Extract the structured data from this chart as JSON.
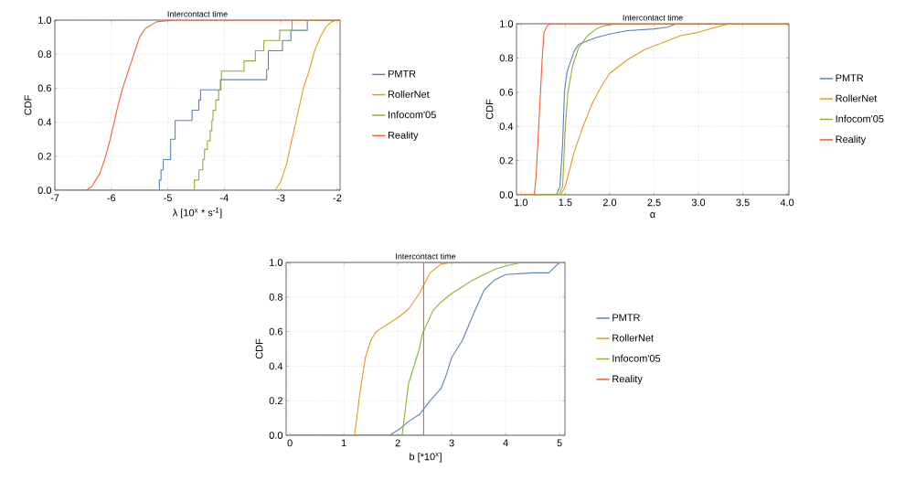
{
  "chart_data": [
    {
      "type": "step",
      "title": "Intercontact time",
      "xlabel": "λ [10$^{x}$ * s$^{-1}$]",
      "ylabel": "CDF",
      "xlim": [
        -7,
        -1.95
      ],
      "ylim": [
        0,
        1
      ],
      "xticks": [
        -7,
        -6,
        -5,
        -4,
        -3,
        -2
      ],
      "yticks": [
        {
          "value": 0,
          "label": "0.0"
        },
        {
          "value": 0.2,
          "label": "0.2"
        },
        {
          "value": 0.4,
          "label": "0.4"
        },
        {
          "value": 0.6,
          "label": "0.6"
        },
        {
          "value": 0.8,
          "label": "0.8"
        },
        {
          "value": 1,
          "label": "1.0"
        }
      ],
      "grid": true,
      "legend": "right",
      "series": [
        {
          "name": "PMTR",
          "color": "#5e81b5",
          "x": [
            -7,
            -5.15,
            -5.12,
            -5.08,
            -4.95,
            -4.87,
            -4.57,
            -4.45,
            -4.42,
            -4.06,
            -3.25,
            -3.22,
            -2.97,
            -2.82,
            -2.53,
            -1.95
          ],
          "values": [
            0,
            0.06,
            0.12,
            0.18,
            0.3,
            0.41,
            0.47,
            0.53,
            0.59,
            0.65,
            0.71,
            0.82,
            0.88,
            0.94,
            1,
            1
          ]
        },
        {
          "name": "RollerNet",
          "type": "line",
          "color": "#e19c24",
          "x": [
            -7,
            -3.1,
            -3.0,
            -2.9,
            -2.8,
            -2.7,
            -2.6,
            -2.5,
            -2.4,
            -2.3,
            -2.2,
            -2.1,
            -2.0,
            -1.95
          ],
          "values": [
            0,
            0,
            0.05,
            0.15,
            0.3,
            0.45,
            0.6,
            0.7,
            0.82,
            0.9,
            0.96,
            0.99,
            1,
            1
          ]
        },
        {
          "name": "Infocom'05",
          "color": "#8fb032",
          "x": [
            -7,
            -4.53,
            -4.45,
            -4.38,
            -4.35,
            -4.3,
            -4.25,
            -4.22,
            -4.2,
            -4.15,
            -4.1,
            -4.07,
            -4.05,
            -3.65,
            -3.45,
            -3.3,
            -3.02,
            -2.8,
            -1.95
          ],
          "values": [
            0,
            0.06,
            0.12,
            0.18,
            0.24,
            0.29,
            0.35,
            0.41,
            0.47,
            0.53,
            0.59,
            0.65,
            0.7,
            0.76,
            0.82,
            0.88,
            0.94,
            1,
            1
          ]
        },
        {
          "name": "Reality",
          "type": "line",
          "color": "#eb6235",
          "x": [
            -7,
            -6.45,
            -6.35,
            -6.2,
            -6.1,
            -6.02,
            -5.95,
            -5.88,
            -5.8,
            -5.7,
            -5.6,
            -5.5,
            -5.4,
            -5.2,
            -4.9,
            -1.95
          ],
          "values": [
            0,
            0,
            0.02,
            0.1,
            0.2,
            0.3,
            0.4,
            0.5,
            0.6,
            0.7,
            0.8,
            0.9,
            0.95,
            0.99,
            1,
            1
          ]
        }
      ]
    },
    {
      "type": "line",
      "title": "Intercontact time",
      "xlabel": "α",
      "ylabel": "CDF",
      "xlim": [
        0.95,
        4.02
      ],
      "ylim": [
        0,
        1
      ],
      "xticks": [
        {
          "value": 1,
          "label": "1.0"
        },
        {
          "value": 1.5,
          "label": "1.5"
        },
        {
          "value": 2,
          "label": "2.0"
        },
        {
          "value": 2.5,
          "label": "2.5"
        },
        {
          "value": 3,
          "label": "3.0"
        },
        {
          "value": 3.5,
          "label": "3.5"
        },
        {
          "value": 4,
          "label": "4.0"
        }
      ],
      "yticks": [
        {
          "value": 0,
          "label": "0.0"
        },
        {
          "value": 0.2,
          "label": "0.2"
        },
        {
          "value": 0.4,
          "label": "0.4"
        },
        {
          "value": 0.6,
          "label": "0.6"
        },
        {
          "value": 0.8,
          "label": "0.8"
        },
        {
          "value": 1,
          "label": "1.0"
        }
      ],
      "grid": true,
      "legend": "right",
      "series": [
        {
          "name": "PMTR",
          "color": "#5e81b5",
          "x": [
            1.0,
            1.4,
            1.44,
            1.47,
            1.49,
            1.52,
            1.56,
            1.6,
            1.65,
            1.75,
            1.85,
            2.0,
            2.2,
            2.5,
            2.65,
            2.75,
            4.0
          ],
          "values": [
            0,
            0,
            0.05,
            0.3,
            0.6,
            0.72,
            0.78,
            0.84,
            0.88,
            0.9,
            0.92,
            0.94,
            0.96,
            0.97,
            0.98,
            1,
            1
          ]
        },
        {
          "name": "RollerNet",
          "color": "#e19c24",
          "x": [
            1.0,
            1.45,
            1.5,
            1.6,
            1.7,
            1.8,
            1.9,
            2.0,
            2.2,
            2.4,
            2.6,
            2.8,
            3.0,
            3.2,
            3.35,
            4.0
          ],
          "values": [
            0,
            0,
            0.05,
            0.25,
            0.4,
            0.53,
            0.63,
            0.71,
            0.79,
            0.85,
            0.89,
            0.93,
            0.95,
            0.98,
            1,
            1
          ]
        },
        {
          "name": "Infocom'05",
          "color": "#8fb032",
          "x": [
            1.0,
            1.43,
            1.47,
            1.5,
            1.53,
            1.58,
            1.65,
            1.75,
            1.85,
            1.95,
            2.1,
            4.0
          ],
          "values": [
            0,
            0,
            0.05,
            0.4,
            0.6,
            0.75,
            0.86,
            0.93,
            0.97,
            0.99,
            1,
            1
          ]
        },
        {
          "name": "Reality",
          "color": "#eb6235",
          "x": [
            1.0,
            1.15,
            1.17,
            1.2,
            1.24,
            1.26,
            1.3,
            1.33,
            4.0
          ],
          "values": [
            0,
            0,
            0.1,
            0.4,
            0.8,
            0.95,
            0.99,
            1,
            1
          ]
        }
      ]
    },
    {
      "type": "line",
      "title": "Intercontact time",
      "xlabel": "b [*10$^{x}$]",
      "ylabel": "CDF",
      "xlim": [
        -0.07,
        5.1
      ],
      "ylim": [
        0,
        1
      ],
      "xticks": [
        0,
        1,
        2,
        3,
        4,
        5
      ],
      "yticks": [
        {
          "value": 0,
          "label": "0.0"
        },
        {
          "value": 0.2,
          "label": "0.2"
        },
        {
          "value": 0.4,
          "label": "0.4"
        },
        {
          "value": 0.6,
          "label": "0.6"
        },
        {
          "value": 0.8,
          "label": "0.8"
        },
        {
          "value": 1,
          "label": "1.0"
        }
      ],
      "grid": true,
      "legend": "right",
      "series": [
        {
          "name": "PMTR",
          "color": "#5e81b5",
          "x": [
            0,
            1.85,
            1.95,
            2.05,
            2.2,
            2.4,
            2.6,
            2.8,
            2.9,
            3.0,
            3.2,
            3.4,
            3.6,
            3.8,
            4.0,
            4.5,
            4.8,
            4.9,
            5.0
          ],
          "values": [
            0,
            0,
            0.02,
            0.04,
            0.08,
            0.12,
            0.2,
            0.27,
            0.35,
            0.45,
            0.55,
            0.7,
            0.84,
            0.9,
            0.93,
            0.94,
            0.94,
            0.97,
            1
          ]
        },
        {
          "name": "RollerNet",
          "color": "#e19c24",
          "x": [
            0,
            1.2,
            1.22,
            1.3,
            1.4,
            1.5,
            1.6,
            1.8,
            2.0,
            2.2,
            2.4,
            2.5,
            2.6,
            2.8,
            3.0,
            5.0
          ],
          "values": [
            0,
            0,
            0.05,
            0.25,
            0.45,
            0.55,
            0.6,
            0.64,
            0.68,
            0.73,
            0.82,
            0.88,
            0.94,
            0.99,
            1,
            1
          ]
        },
        {
          "name": "Infocom'05",
          "color": "#8fb032",
          "x": [
            0,
            2.08,
            2.12,
            2.2,
            2.3,
            2.4,
            2.45,
            2.55,
            2.65,
            2.8,
            3.0,
            3.2,
            3.4,
            3.6,
            3.8,
            4.0,
            4.3,
            5.0
          ],
          "values": [
            0,
            0,
            0.1,
            0.3,
            0.4,
            0.5,
            0.58,
            0.65,
            0.72,
            0.77,
            0.82,
            0.86,
            0.9,
            0.93,
            0.96,
            0.98,
            1,
            1
          ]
        },
        {
          "name": "Reality",
          "color": "#eb6235",
          "x": [
            0,
            2.48,
            2.48,
            5.0
          ],
          "values": [
            0,
            0,
            1,
            1
          ]
        }
      ]
    }
  ]
}
